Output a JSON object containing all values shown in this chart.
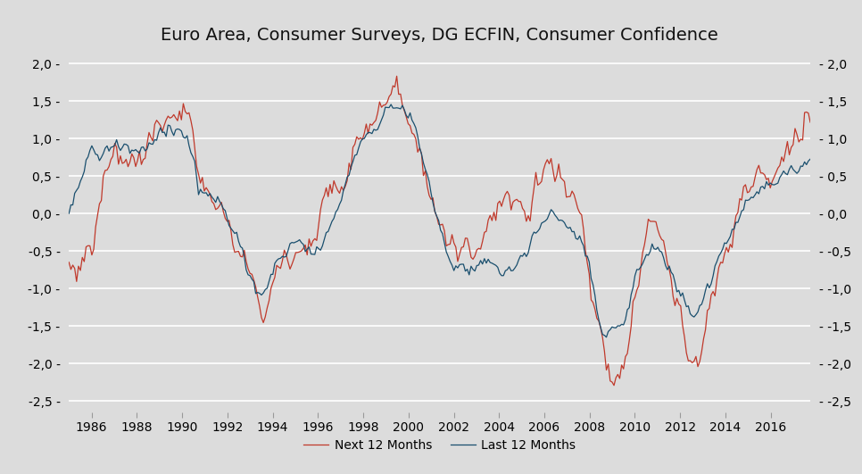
{
  "title": "Euro Area, Consumer Surveys, DG ECFIN, Consumer Confidence",
  "background_color": "#dcdcdc",
  "plot_bg_color": "#dcdcdc",
  "line_color_next": "#c0392b",
  "line_color_last": "#1a4f6e",
  "legend_next": "Next 12 Months",
  "legend_last": "Last 12 Months",
  "ylim": [
    -2.65,
    2.15
  ],
  "yticks": [
    -2.5,
    -2.0,
    -1.5,
    -1.0,
    -0.5,
    0.0,
    0.5,
    1.0,
    1.5,
    2.0
  ],
  "xlabel_years": [
    1986,
    1988,
    1990,
    1992,
    1994,
    1996,
    1998,
    2000,
    2002,
    2004,
    2006,
    2008,
    2010,
    2012,
    2014,
    2016
  ],
  "start_year": 1985.0,
  "end_year": 2017.75,
  "months_per_year": 12
}
